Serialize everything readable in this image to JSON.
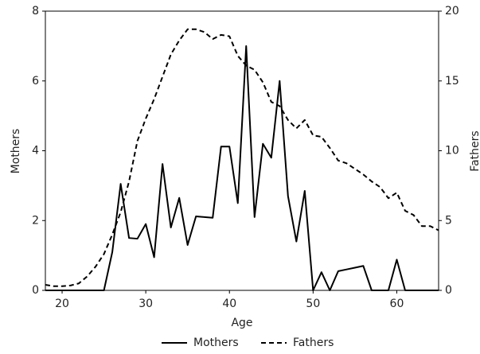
{
  "chart_data": {
    "type": "line",
    "xlabel": "Age",
    "ylabel": "Mothers",
    "y2label": "Fathers",
    "x": [
      18,
      19,
      20,
      21,
      22,
      23,
      24,
      25,
      26,
      27,
      28,
      29,
      30,
      31,
      32,
      33,
      34,
      35,
      36,
      37,
      38,
      39,
      40,
      41,
      42,
      43,
      44,
      45,
      46,
      47,
      48,
      49,
      50,
      51,
      52,
      53,
      54,
      55,
      56,
      57,
      58,
      59,
      60,
      61,
      62,
      63,
      64,
      65
    ],
    "series": [
      {
        "name": "Mothers",
        "color": "#000000",
        "linestyle": "solid",
        "axis": "y",
        "values": [
          0,
          0,
          0,
          0,
          0,
          0,
          0,
          0,
          1.1,
          3.05,
          1.5,
          1.48,
          1.9,
          0.95,
          3.62,
          1.8,
          2.65,
          1.3,
          2.12,
          2.1,
          2.08,
          4.12,
          4.12,
          2.5,
          7.0,
          2.1,
          4.2,
          3.8,
          6.0,
          2.7,
          1.4,
          2.85,
          0,
          0.52,
          0,
          0.55,
          0.6,
          0.65,
          0.7,
          0,
          0,
          0,
          0.88,
          0,
          0,
          0,
          0,
          0
        ]
      },
      {
        "name": "Fathers",
        "color": "#000000",
        "linestyle": "dashed",
        "axis": "y2",
        "values": [
          0.4,
          0.3,
          0.3,
          0.35,
          0.5,
          1.0,
          1.7,
          2.6,
          4.0,
          5.6,
          7.8,
          10.7,
          12.3,
          13.7,
          15.3,
          16.9,
          17.9,
          18.7,
          18.7,
          18.5,
          18.0,
          18.3,
          18.2,
          16.8,
          16.1,
          15.8,
          14.9,
          13.5,
          13.2,
          12.2,
          11.6,
          12.2,
          11.1,
          11.0,
          10.2,
          9.3,
          9.1,
          8.7,
          8.3,
          7.8,
          7.4,
          6.6,
          7.0,
          5.7,
          5.4,
          4.6,
          4.6,
          4.3
        ]
      }
    ],
    "xlim": [
      18,
      65
    ],
    "xticks": [
      20,
      30,
      40,
      50,
      60
    ],
    "ylim": [
      0,
      8
    ],
    "yticks": [
      0,
      2,
      4,
      6,
      8
    ],
    "y2lim": [
      0,
      20
    ],
    "y2ticks": [
      0,
      5,
      10,
      15,
      20
    ],
    "grid": false,
    "legend": "bottom"
  }
}
